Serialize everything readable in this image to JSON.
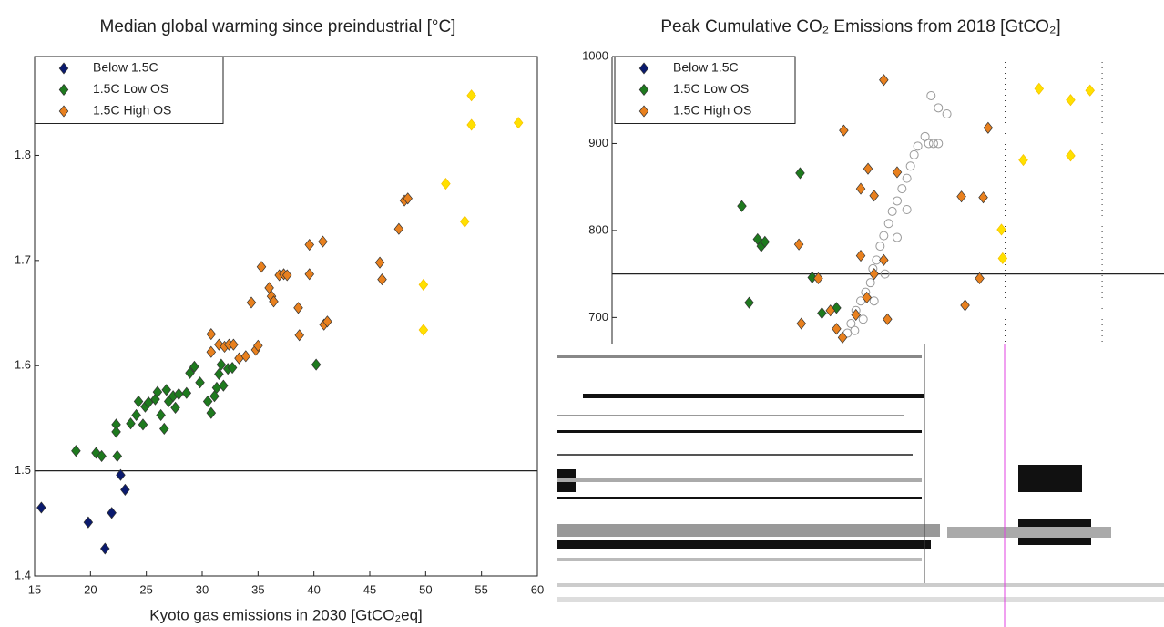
{
  "chart_data": [
    {
      "type": "scatter",
      "title": "Median global warming since preindustrial [°C]",
      "x_label": "Kyoto gas emissions in 2030 [GtCO₂eq]",
      "xlim": [
        15,
        60
      ],
      "xticks": [
        15,
        20,
        25,
        30,
        35,
        40,
        45,
        50,
        55,
        60
      ],
      "ylim": [
        1.4,
        1.894
      ],
      "yticks": [
        1.4,
        1.5,
        1.6,
        1.7,
        1.8
      ],
      "hline": 1.5,
      "legend": "upper left",
      "series": [
        {
          "name": "Below 1.5C",
          "color": "#0a1a6e",
          "marker": "diamond",
          "x": [
            15.6,
            19.8,
            21.3,
            21.9,
            22.7,
            23.1
          ],
          "values": [
            1.465,
            1.451,
            1.426,
            1.46,
            1.496,
            1.482
          ]
        },
        {
          "name": "1.5C Low OS",
          "color": "#1e7a1e",
          "marker": "diamond",
          "x": [
            18.7,
            20.5,
            21.0,
            22.3,
            22.3,
            22.4,
            23.6,
            24.1,
            24.3,
            24.7,
            24.9,
            25.2,
            25.8,
            26.0,
            26.3,
            26.6,
            26.8,
            27.0,
            27.4,
            27.6,
            27.9,
            28.6,
            28.9,
            29.3,
            29.8,
            30.5,
            30.8,
            31.1,
            31.3,
            31.5,
            31.7,
            31.9,
            32.3,
            32.7,
            40.2
          ],
          "values": [
            1.519,
            1.517,
            1.514,
            1.544,
            1.537,
            1.514,
            1.545,
            1.553,
            1.566,
            1.544,
            1.561,
            1.565,
            1.568,
            1.575,
            1.553,
            1.54,
            1.577,
            1.566,
            1.571,
            1.56,
            1.573,
            1.574,
            1.593,
            1.599,
            1.584,
            1.566,
            1.555,
            1.571,
            1.579,
            1.592,
            1.601,
            1.581,
            1.597,
            1.598,
            1.601
          ]
        },
        {
          "name": "1.5C High OS",
          "color": "#e8801e",
          "marker": "diamond",
          "x": [
            30.8,
            30.8,
            31.5,
            32.0,
            32.4,
            32.8,
            33.3,
            33.9,
            34.8,
            35.0,
            35.3,
            34.4,
            36.0,
            36.2,
            36.4,
            36.9,
            37.3,
            37.6,
            38.6,
            38.7,
            39.6,
            39.6,
            40.8,
            40.9,
            41.2,
            45.9,
            46.1,
            47.6,
            48.1,
            48.4
          ],
          "values": [
            1.63,
            1.613,
            1.62,
            1.618,
            1.62,
            1.62,
            1.607,
            1.609,
            1.615,
            1.619,
            1.694,
            1.66,
            1.674,
            1.666,
            1.661,
            1.686,
            1.687,
            1.686,
            1.655,
            1.629,
            1.687,
            1.715,
            1.718,
            1.639,
            1.642,
            1.698,
            1.682,
            1.73,
            1.757,
            1.759
          ]
        },
        {
          "color": "#ffe000",
          "marker": "diamond",
          "x": [
            54.1,
            54.1,
            58.3,
            51.8,
            53.5,
            49.8,
            49.8
          ],
          "values": [
            1.857,
            1.829,
            1.831,
            1.773,
            1.737,
            1.677,
            1.634
          ]
        }
      ]
    },
    {
      "type": "scatter",
      "title": "Peak Cumulative CO₂ Emissions from 2018 [GtCO₂]",
      "xlim": [
        6.5,
        52
      ],
      "ylim": [
        670,
        1000
      ],
      "yticks": [
        700,
        800,
        900,
        1000
      ],
      "hline": 750,
      "vlines": [
        38.9,
        46.9
      ],
      "legend": "upper left",
      "series": [
        {
          "color": "#999999",
          "marker": "circle",
          "x": [
            25.9,
            26.2,
            26.6,
            27.0,
            27.4,
            27.8,
            28.0,
            28.3,
            28.6,
            28.9,
            29.3,
            29.6,
            30.0,
            30.4,
            30.8,
            31.1,
            31.4,
            31.7,
            32.3,
            32.6,
            33.0,
            33.4,
            32.8,
            33.4,
            34.1,
            26.5,
            27.2,
            28.1,
            29.0,
            30.0,
            30.8
          ],
          "values": [
            682,
            693,
            708,
            719,
            729,
            740,
            756,
            766,
            782,
            794,
            808,
            822,
            834,
            848,
            860,
            874,
            887,
            897,
            908,
            900,
            900,
            900,
            955,
            941,
            934,
            685,
            698,
            719,
            750,
            792,
            824
          ]
        },
        {
          "name": "Below 1.5C",
          "color": "#0a1a6e",
          "marker": "diamond",
          "x": [],
          "values": []
        },
        {
          "name": "1.5C Low OS",
          "color": "#1e7a1e",
          "marker": "diamond",
          "x": [
            17.2,
            17.8,
            18.5,
            18.8,
            19.1,
            23.0,
            23.8,
            25.0,
            22.0
          ],
          "values": [
            828,
            717,
            790,
            782,
            787,
            746,
            705,
            711,
            866
          ]
        },
        {
          "name": "1.5C High OS",
          "color": "#e8801e",
          "marker": "diamond",
          "x": [
            28.9,
            25.6,
            37.5,
            27.6,
            30.0,
            27.0,
            28.1,
            35.3,
            37.1,
            21.9,
            23.5,
            22.1,
            24.5,
            25.0,
            25.5,
            26.6,
            27.5,
            29.2,
            35.6,
            36.8,
            28.1,
            27.0,
            28.9
          ],
          "values": [
            973,
            915,
            918,
            871,
            867,
            848,
            840,
            839,
            838,
            784,
            745,
            693,
            708,
            687,
            677,
            703,
            723,
            698,
            714,
            745,
            750,
            771,
            766
          ]
        },
        {
          "color": "#ffe000",
          "marker": "diamond",
          "x": [
            41.7,
            44.3,
            45.9,
            40.4,
            44.3,
            38.6,
            38.7
          ],
          "values": [
            963,
            950,
            961,
            881,
            886,
            801,
            768
          ]
        }
      ]
    }
  ]
}
